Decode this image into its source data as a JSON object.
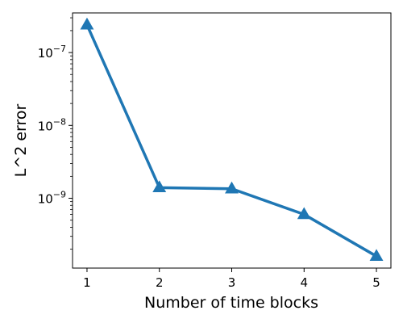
{
  "chart_data": {
    "type": "line",
    "title": "",
    "xlabel": "Number of time blocks",
    "ylabel": "L^2 error",
    "yscale": "log",
    "x": [
      1,
      2,
      3,
      4,
      5
    ],
    "xlim": [
      0.8,
      5.2
    ],
    "ylim": [
      1.1e-10,
      3.5e-07
    ],
    "xticks": [
      "1",
      "2",
      "3",
      "4",
      "5"
    ],
    "yticks": [
      {
        "value": 1e-09,
        "base": "10",
        "exp": "−9"
      },
      {
        "value": 1e-08,
        "base": "10",
        "exp": "−8"
      },
      {
        "value": 1e-07,
        "base": "10",
        "exp": "−7"
      }
    ],
    "grid": false,
    "series": [
      {
        "marker": "triangle-up",
        "color": "#1f77b4",
        "values": [
          2.4e-07,
          1.4e-09,
          1.35e-09,
          6e-10,
          1.6e-10
        ]
      }
    ]
  }
}
